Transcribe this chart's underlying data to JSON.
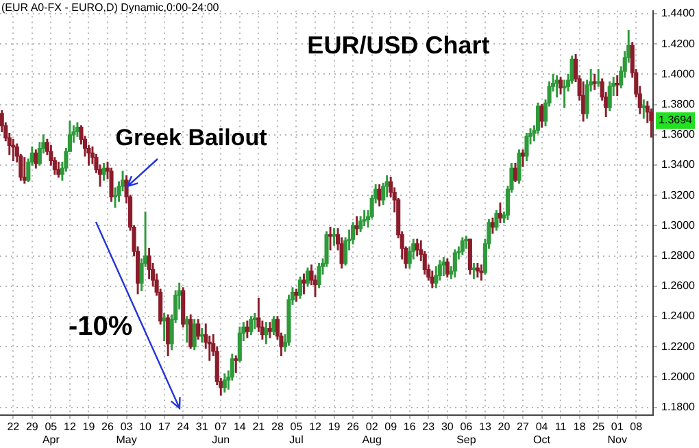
{
  "chart_data": {
    "type": "candlestick",
    "title": "EUR/USD Chart",
    "categories": [
      null,
      null,
      null,
      "22",
      null,
      null,
      null,
      null,
      "29",
      null,
      null,
      null,
      null,
      "05\nApr",
      null,
      null,
      null,
      null,
      "12",
      null,
      null,
      null,
      null,
      "19",
      null,
      null,
      null,
      null,
      "26",
      null,
      null,
      null,
      null,
      "03\nMay",
      null,
      null,
      null,
      null,
      "10",
      null,
      null,
      null,
      null,
      "17",
      null,
      null,
      null,
      null,
      "24",
      null,
      null,
      null,
      null,
      "31",
      null,
      null,
      null,
      null,
      "07\nJun",
      null,
      null,
      null,
      null,
      "14",
      null,
      null,
      null,
      null,
      "21",
      null,
      null,
      null,
      null,
      "28",
      null,
      null,
      null,
      null,
      "05\nJul",
      null,
      null,
      null,
      null,
      "12",
      null,
      null,
      null,
      null,
      "19",
      null,
      null,
      null,
      null,
      "26",
      null,
      null,
      null,
      null,
      "02\nAug",
      null,
      null,
      null,
      null,
      "09",
      null,
      null,
      null,
      null,
      "16",
      null,
      null,
      null,
      null,
      "23",
      null,
      null,
      null,
      null,
      "30",
      null,
      null,
      null,
      null,
      "06\nSep",
      null,
      null,
      null,
      null,
      "13",
      null,
      null,
      null,
      null,
      "20",
      null,
      null,
      null,
      null,
      "27",
      null,
      null,
      null,
      null,
      "04\nOct",
      null,
      null,
      null,
      null,
      "11",
      null,
      null,
      null,
      null,
      "18",
      null,
      null,
      null,
      null,
      "25",
      null,
      null,
      null,
      null,
      "01\nNov",
      null,
      null,
      null,
      null,
      "08",
      null,
      null,
      null,
      null
    ],
    "ohlc": [
      [
        1.374,
        1.376,
        1.362,
        1.366
      ],
      [
        1.366,
        1.368,
        1.356,
        1.358
      ],
      [
        1.358,
        1.361,
        1.347,
        1.353
      ],
      [
        1.353,
        1.357,
        1.343,
        1.352
      ],
      [
        1.352,
        1.354,
        1.342,
        1.346
      ],
      [
        1.346,
        1.347,
        1.33,
        1.332
      ],
      [
        1.332,
        1.345,
        1.328,
        1.33
      ],
      [
        1.33,
        1.344,
        1.329,
        1.342
      ],
      [
        1.342,
        1.352,
        1.34,
        1.348
      ],
      [
        1.348,
        1.35,
        1.338,
        1.341
      ],
      [
        1.341,
        1.355,
        1.34,
        1.351
      ],
      [
        1.351,
        1.36,
        1.348,
        1.355
      ],
      [
        1.355,
        1.357,
        1.347,
        1.349
      ],
      [
        1.349,
        1.353,
        1.34,
        1.343
      ],
      [
        1.343,
        1.345,
        1.334,
        1.337
      ],
      [
        1.337,
        1.342,
        1.332,
        1.334
      ],
      [
        1.334,
        1.342,
        1.33,
        1.338
      ],
      [
        1.338,
        1.351,
        1.336,
        1.349
      ],
      [
        1.349,
        1.369,
        1.349,
        1.36
      ],
      [
        1.36,
        1.366,
        1.355,
        1.362
      ],
      [
        1.362,
        1.368,
        1.359,
        1.365
      ],
      [
        1.365,
        1.366,
        1.354,
        1.357
      ],
      [
        1.357,
        1.359,
        1.346,
        1.351
      ],
      [
        1.351,
        1.353,
        1.34,
        1.348
      ],
      [
        1.348,
        1.352,
        1.341,
        1.345
      ],
      [
        1.345,
        1.347,
        1.335,
        1.337
      ],
      [
        1.337,
        1.34,
        1.326,
        1.334
      ],
      [
        1.334,
        1.341,
        1.33,
        1.338
      ],
      [
        1.338,
        1.342,
        1.331,
        1.336
      ],
      [
        1.336,
        1.338,
        1.316,
        1.319
      ],
      [
        1.319,
        1.325,
        1.312,
        1.32
      ],
      [
        1.32,
        1.329,
        1.316,
        1.326
      ],
      [
        1.326,
        1.336,
        1.323,
        1.33
      ],
      [
        1.33,
        1.333,
        1.315,
        1.319
      ],
      [
        1.319,
        1.32,
        1.297,
        1.299
      ],
      [
        1.299,
        1.3,
        1.28,
        1.283
      ],
      [
        1.283,
        1.286,
        1.255,
        1.262
      ],
      [
        1.262,
        1.278,
        1.257,
        1.275
      ],
      [
        1.275,
        1.309,
        1.273,
        1.28
      ],
      [
        1.28,
        1.285,
        1.265,
        1.271
      ],
      [
        1.271,
        1.275,
        1.26,
        1.264
      ],
      [
        1.264,
        1.268,
        1.254,
        1.256
      ],
      [
        1.256,
        1.258,
        1.235,
        1.237
      ],
      [
        1.237,
        1.242,
        1.224,
        1.239
      ],
      [
        1.239,
        1.241,
        1.214,
        1.222
      ],
      [
        1.222,
        1.241,
        1.218,
        1.238
      ],
      [
        1.238,
        1.257,
        1.236,
        1.254
      ],
      [
        1.254,
        1.262,
        1.245,
        1.257
      ],
      [
        1.257,
        1.259,
        1.233,
        1.235
      ],
      [
        1.235,
        1.24,
        1.223,
        1.238
      ],
      [
        1.238,
        1.241,
        1.219,
        1.22
      ],
      [
        1.22,
        1.238,
        1.218,
        1.235
      ],
      [
        1.235,
        1.238,
        1.225,
        1.227
      ],
      [
        1.227,
        1.232,
        1.223,
        1.228
      ],
      [
        1.228,
        1.235,
        1.219,
        1.223
      ],
      [
        1.223,
        1.227,
        1.211,
        1.222
      ],
      [
        1.222,
        1.228,
        1.214,
        1.217
      ],
      [
        1.217,
        1.22,
        1.195,
        1.197
      ],
      [
        1.197,
        1.199,
        1.188,
        1.193
      ],
      [
        1.193,
        1.202,
        1.19,
        1.198
      ],
      [
        1.198,
        1.204,
        1.192,
        1.2
      ],
      [
        1.2,
        1.215,
        1.198,
        1.212
      ],
      [
        1.212,
        1.214,
        1.203,
        1.211
      ],
      [
        1.211,
        1.233,
        1.21,
        1.229
      ],
      [
        1.229,
        1.236,
        1.224,
        1.233
      ],
      [
        1.233,
        1.237,
        1.226,
        1.23
      ],
      [
        1.23,
        1.24,
        1.228,
        1.238
      ],
      [
        1.238,
        1.242,
        1.232,
        1.239
      ],
      [
        1.239,
        1.252,
        1.23,
        1.233
      ],
      [
        1.233,
        1.237,
        1.225,
        1.228
      ],
      [
        1.228,
        1.236,
        1.222,
        1.232
      ],
      [
        1.232,
        1.236,
        1.226,
        1.23
      ],
      [
        1.23,
        1.24,
        1.228,
        1.238
      ],
      [
        1.238,
        1.24,
        1.225,
        1.227
      ],
      [
        1.227,
        1.229,
        1.214,
        1.22
      ],
      [
        1.22,
        1.228,
        1.217,
        1.223
      ],
      [
        1.223,
        1.254,
        1.221,
        1.251
      ],
      [
        1.251,
        1.259,
        1.248,
        1.256
      ],
      [
        1.256,
        1.258,
        1.25,
        1.254
      ],
      [
        1.254,
        1.266,
        1.252,
        1.264
      ],
      [
        1.264,
        1.268,
        1.255,
        1.262
      ],
      [
        1.262,
        1.272,
        1.26,
        1.27
      ],
      [
        1.27,
        1.274,
        1.261,
        1.264
      ],
      [
        1.264,
        1.267,
        1.253,
        1.261
      ],
      [
        1.261,
        1.275,
        1.259,
        1.273
      ],
      [
        1.273,
        1.278,
        1.268,
        1.275
      ],
      [
        1.275,
        1.296,
        1.273,
        1.294
      ],
      [
        1.294,
        1.299,
        1.284,
        1.293
      ],
      [
        1.293,
        1.298,
        1.287,
        1.294
      ],
      [
        1.294,
        1.298,
        1.284,
        1.288
      ],
      [
        1.288,
        1.292,
        1.272,
        1.275
      ],
      [
        1.275,
        1.292,
        1.274,
        1.29
      ],
      [
        1.29,
        1.297,
        1.284,
        1.291
      ],
      [
        1.291,
        1.302,
        1.288,
        1.3
      ],
      [
        1.3,
        1.306,
        1.294,
        1.298
      ],
      [
        1.298,
        1.306,
        1.296,
        1.303
      ],
      [
        1.303,
        1.31,
        1.3,
        1.304
      ],
      [
        1.304,
        1.31,
        1.299,
        1.306
      ],
      [
        1.306,
        1.32,
        1.305,
        1.318
      ],
      [
        1.318,
        1.327,
        1.315,
        1.324
      ],
      [
        1.324,
        1.327,
        1.313,
        1.317
      ],
      [
        1.317,
        1.328,
        1.314,
        1.326
      ],
      [
        1.326,
        1.333,
        1.319,
        1.329
      ],
      [
        1.329,
        1.332,
        1.319,
        1.322
      ],
      [
        1.322,
        1.325,
        1.309,
        1.317
      ],
      [
        1.317,
        1.318,
        1.292,
        1.294
      ],
      [
        1.294,
        1.296,
        1.278,
        1.285
      ],
      [
        1.285,
        1.286,
        1.272,
        1.275
      ],
      [
        1.275,
        1.286,
        1.272,
        1.283
      ],
      [
        1.283,
        1.291,
        1.278,
        1.288
      ],
      [
        1.288,
        1.291,
        1.28,
        1.284
      ],
      [
        1.284,
        1.29,
        1.277,
        1.281
      ],
      [
        1.281,
        1.283,
        1.268,
        1.271
      ],
      [
        1.271,
        1.274,
        1.264,
        1.266
      ],
      [
        1.266,
        1.27,
        1.259,
        1.262
      ],
      [
        1.262,
        1.273,
        1.259,
        1.267
      ],
      [
        1.267,
        1.277,
        1.264,
        1.274
      ],
      [
        1.274,
        1.279,
        1.267,
        1.276
      ],
      [
        1.276,
        1.278,
        1.266,
        1.268
      ],
      [
        1.268,
        1.273,
        1.265,
        1.27
      ],
      [
        1.27,
        1.284,
        1.266,
        1.282
      ],
      [
        1.282,
        1.286,
        1.278,
        1.283
      ],
      [
        1.283,
        1.292,
        1.281,
        1.29
      ],
      [
        1.29,
        1.293,
        1.285,
        1.291
      ],
      [
        1.291,
        1.291,
        1.268,
        1.271
      ],
      [
        1.271,
        1.275,
        1.265,
        1.272
      ],
      [
        1.272,
        1.275,
        1.266,
        1.27
      ],
      [
        1.27,
        1.274,
        1.264,
        1.269
      ],
      [
        1.269,
        1.291,
        1.268,
        1.288
      ],
      [
        1.288,
        1.304,
        1.285,
        1.302
      ],
      [
        1.302,
        1.305,
        1.295,
        1.299
      ],
      [
        1.299,
        1.31,
        1.297,
        1.308
      ],
      [
        1.308,
        1.315,
        1.302,
        1.305
      ],
      [
        1.305,
        1.309,
        1.302,
        1.307
      ],
      [
        1.307,
        1.326,
        1.304,
        1.324
      ],
      [
        1.324,
        1.341,
        1.322,
        1.338
      ],
      [
        1.338,
        1.341,
        1.329,
        1.33
      ],
      [
        1.33,
        1.35,
        1.328,
        1.348
      ],
      [
        1.348,
        1.35,
        1.339,
        1.346
      ],
      [
        1.346,
        1.361,
        1.343,
        1.359
      ],
      [
        1.359,
        1.364,
        1.354,
        1.361
      ],
      [
        1.361,
        1.366,
        1.356,
        1.363
      ],
      [
        1.363,
        1.381,
        1.361,
        1.379
      ],
      [
        1.379,
        1.38,
        1.365,
        1.369
      ],
      [
        1.369,
        1.383,
        1.366,
        1.381
      ],
      [
        1.381,
        1.395,
        1.379,
        1.392
      ],
      [
        1.392,
        1.4,
        1.389,
        1.394
      ],
      [
        1.394,
        1.399,
        1.385,
        1.396
      ],
      [
        1.396,
        1.398,
        1.387,
        1.391
      ],
      [
        1.391,
        1.396,
        1.378,
        1.392
      ],
      [
        1.392,
        1.4,
        1.389,
        1.396
      ],
      [
        1.396,
        1.412,
        1.394,
        1.41
      ],
      [
        1.41,
        1.413,
        1.395,
        1.397
      ],
      [
        1.397,
        1.399,
        1.383,
        1.386
      ],
      [
        1.386,
        1.395,
        1.369,
        1.374
      ],
      [
        1.374,
        1.396,
        1.371,
        1.393
      ],
      [
        1.393,
        1.403,
        1.389,
        1.395
      ],
      [
        1.395,
        1.4,
        1.39,
        1.394
      ],
      [
        1.394,
        1.403,
        1.392,
        1.395
      ],
      [
        1.395,
        1.397,
        1.383,
        1.385
      ],
      [
        1.385,
        1.388,
        1.372,
        1.378
      ],
      [
        1.378,
        1.395,
        1.376,
        1.392
      ],
      [
        1.392,
        1.398,
        1.386,
        1.394
      ],
      [
        1.394,
        1.399,
        1.386,
        1.393
      ],
      [
        1.393,
        1.405,
        1.391,
        1.402
      ],
      [
        1.402,
        1.415,
        1.398,
        1.411
      ],
      [
        1.411,
        1.429,
        1.408,
        1.419
      ],
      [
        1.419,
        1.421,
        1.398,
        1.401
      ],
      [
        1.401,
        1.403,
        1.385,
        1.387
      ],
      [
        1.387,
        1.392,
        1.374,
        1.378
      ],
      [
        1.378,
        1.383,
        1.371,
        1.379
      ],
      [
        1.379,
        1.382,
        1.368,
        1.375
      ],
      [
        1.375,
        1.377,
        1.3585,
        1.3694
      ]
    ],
    "ylim": [
      1.175,
      1.442
    ],
    "yticks": [
      {
        "value": 1.18,
        "label": "1.1800"
      },
      {
        "value": 1.2,
        "label": "1.2000"
      },
      {
        "value": 1.22,
        "label": "1.2200"
      },
      {
        "value": 1.24,
        "label": "1.2400"
      },
      {
        "value": 1.26,
        "label": "1.2600"
      },
      {
        "value": 1.28,
        "label": "1.2800"
      },
      {
        "value": 1.3,
        "label": "1.3000"
      },
      {
        "value": 1.32,
        "label": "1.3200"
      },
      {
        "value": 1.34,
        "label": "1.3400"
      },
      {
        "value": 1.36,
        "label": "1.3600"
      },
      {
        "value": 1.38,
        "label": "1.3800"
      },
      {
        "value": 1.4,
        "label": "1.4000"
      },
      {
        "value": 1.42,
        "label": "1.4200"
      },
      {
        "value": 1.44,
        "label": "1.4400"
      }
    ],
    "grid": true,
    "annotations": [
      "(EUR A0-FX - EURO,D) Dynamic,0:00-24:00",
      "-10%",
      {
        "text": "Greek Bailout",
        "x": "03\nMay",
        "y": 1.325
      },
      "1.3694"
    ]
  }
}
